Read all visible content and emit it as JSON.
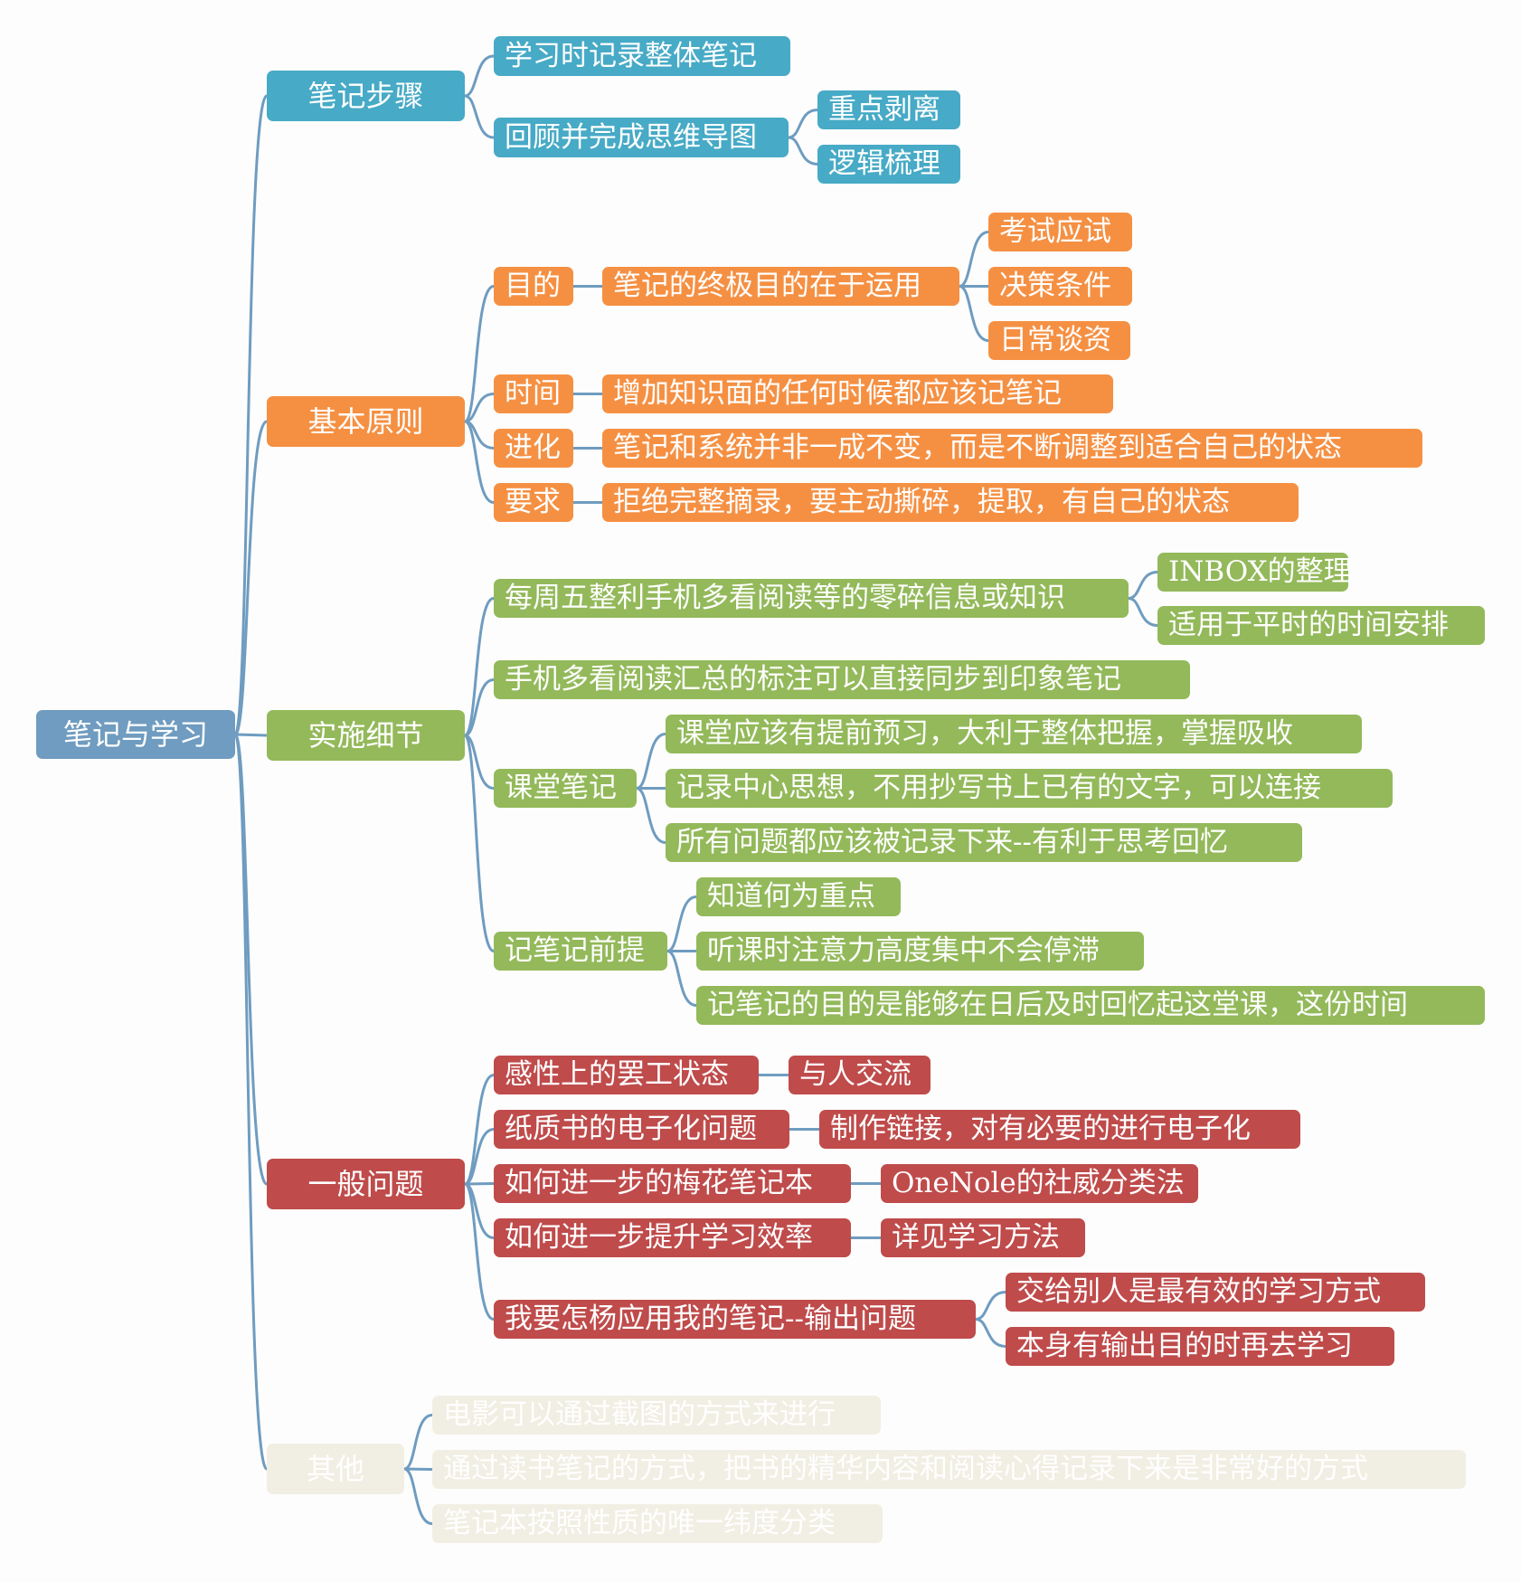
{
  "root": {
    "label": "笔记与学习"
  },
  "branches": [
    {
      "id": "steps",
      "label": "笔记步骤",
      "color": "#47aac6",
      "children": [
        {
          "label": "学习时记录整体笔记"
        },
        {
          "label": "回顾并完成思维导图",
          "children": [
            {
              "label": "重点剥离"
            },
            {
              "label": "逻辑梳理"
            }
          ]
        }
      ]
    },
    {
      "id": "principles",
      "label": "基本原则",
      "color": "#f59043",
      "children": [
        {
          "label": "目的",
          "children": [
            {
              "label": "笔记的终极目的在于运用",
              "children": [
                {
                  "label": "考试应试"
                },
                {
                  "label": "决策条件"
                },
                {
                  "label": "日常谈资"
                }
              ]
            }
          ]
        },
        {
          "label": "时间",
          "children": [
            {
              "label": "增加知识面的任何时候都应该记笔记"
            }
          ]
        },
        {
          "label": "进化",
          "children": [
            {
              "label": "笔记和系统并非一成不变，而是不断调整到适合自己的状态"
            }
          ]
        },
        {
          "label": "要求",
          "children": [
            {
              "label": "拒绝完整摘录，要主动撕碎，提取，有自己的状态"
            }
          ]
        }
      ]
    },
    {
      "id": "details",
      "label": "实施细节",
      "color": "#93b95a",
      "children": [
        {
          "label": "每周五整利手机多看阅读等的零碎信息或知识",
          "children": [
            {
              "label": "INBOX的整理"
            },
            {
              "label": "适用于平时的时间安排"
            }
          ]
        },
        {
          "label": "手机多看阅读汇总的标注可以直接同步到印象笔记"
        },
        {
          "label": "课堂笔记",
          "children": [
            {
              "label": "课堂应该有提前预习，大利于整体把握，掌握吸收"
            },
            {
              "label": "记录中心思想，不用抄写书上已有的文字，可以连接"
            },
            {
              "label": "所有问题都应该被记录下来--有利于思考回忆"
            }
          ]
        },
        {
          "label": "记笔记前提",
          "children": [
            {
              "label": "知道何为重点"
            },
            {
              "label": "听课时注意力高度集中不会停滞"
            },
            {
              "label": "记笔记的目的是能够在日后及时回忆起这堂课，这份时间"
            }
          ]
        }
      ]
    },
    {
      "id": "problems",
      "label": "一般问题",
      "color": "#bf4b4b",
      "children": [
        {
          "label": "感性上的罢工状态",
          "children": [
            {
              "label": "与人交流"
            }
          ]
        },
        {
          "label": "纸质书的电子化问题",
          "children": [
            {
              "label": "制作链接，对有必要的进行电子化"
            }
          ]
        },
        {
          "label": "如何进一步的梅花笔记本",
          "children": [
            {
              "label": "OneNole的社威分类法"
            }
          ]
        },
        {
          "label": "如何进一步提升学习效率",
          "children": [
            {
              "label": "详见学习方法"
            }
          ]
        },
        {
          "label": "我要怎杨应用我的笔记--输出问题",
          "children": [
            {
              "label": "交给别人是最有效的学习方式"
            },
            {
              "label": "本身有输出目的时再去学习"
            }
          ]
        }
      ]
    },
    {
      "id": "other",
      "label": "其他",
      "color": "#f1eee3",
      "children": [
        {
          "label": "电影可以通过截图的方式来进行"
        },
        {
          "label": "通过读书笔记的方式，把书的精华内容和阅读心得记录下来是非常好的方式"
        },
        {
          "label": "笔记本按照性质的唯一纬度分类"
        }
      ]
    }
  ]
}
